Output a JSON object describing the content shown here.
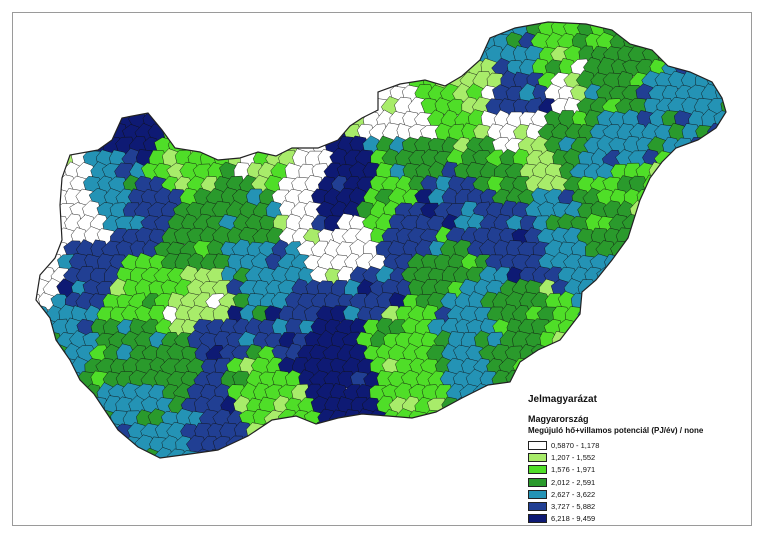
{
  "legend": {
    "title": "Jelmagyarázat",
    "layer": "Magyarország",
    "field": "Megújuló hő+villamos potenciál (PJ/év) / none",
    "classes": [
      {
        "label": "0,5870 - 1,178",
        "color": "#ffffff"
      },
      {
        "label": "1,207 - 1,552",
        "color": "#a8ec6a"
      },
      {
        "label": "1,576 - 1,971",
        "color": "#4fde28"
      },
      {
        "label": "2,012 - 2,591",
        "color": "#2a9a2c"
      },
      {
        "label": "2,627 - 3,622",
        "color": "#2493b5"
      },
      {
        "label": "3,727 - 5,882",
        "color": "#213f93"
      },
      {
        "label": "6,218 - 9,459",
        "color": "#0e1a74"
      }
    ]
  },
  "map": {
    "region": "Hungary",
    "boundary_color": "#111111"
  }
}
